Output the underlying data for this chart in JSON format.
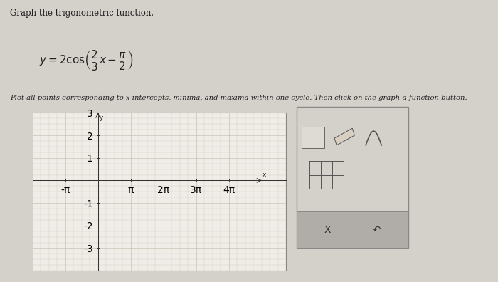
{
  "title": "Graph the trigonometric function.",
  "subtitle": "Plot all points corresponding to x-intercepts, minima, and maxima within one cycle. Then click on the graph-a-function button.",
  "formula_latex": "$y = 2\\cos\\!\\left(\\dfrac{2}{3}x - \\dfrac{\\pi}{2}\\right)$",
  "x_min_factor": -1,
  "x_max_factor": 5,
  "y_min": -4,
  "y_max": 3,
  "x_ticks_pi": [
    -1,
    0,
    1,
    2,
    3,
    4
  ],
  "x_tick_labels": [
    "-π",
    "",
    "π",
    "2π",
    "3π",
    "4π"
  ],
  "y_ticks": [
    -3,
    -2,
    -1,
    0,
    1,
    2,
    3
  ],
  "background_color": "#f0ede8",
  "grid_color": "#c8c0b0",
  "border_color": "#888880",
  "axis_color": "#333333",
  "text_color": "#222222",
  "fig_bg": "#d4d0ca",
  "tool_panel_bg": "#c0bdb8",
  "tool_panel_bottom_bg": "#b0ada8"
}
